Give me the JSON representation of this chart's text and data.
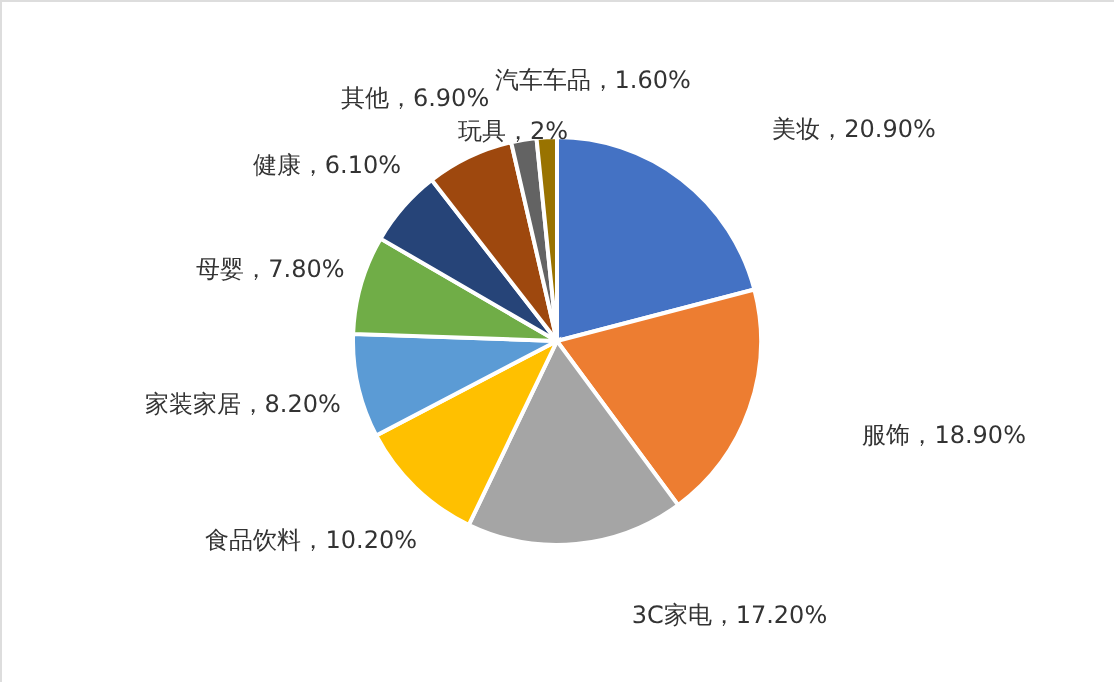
{
  "chart_data": {
    "type": "pie",
    "categories": [
      "美妆",
      "服饰",
      "3C家电",
      "食品饮料",
      "家装家居",
      "母婴",
      "健康",
      "其他",
      "玩具",
      "汽车车品"
    ],
    "values": [
      20.9,
      18.9,
      17.2,
      10.2,
      8.2,
      7.8,
      6.1,
      6.9,
      2,
      1.6
    ],
    "value_labels": [
      "20.90%",
      "18.90%",
      "17.20%",
      "10.20%",
      "8.20%",
      "7.80%",
      "6.10%",
      "6.90%",
      "2%",
      "1.60%"
    ],
    "colors": [
      "#4472c4",
      "#ed7d31",
      "#a5a5a5",
      "#ffc000",
      "#5b9bd5",
      "#70ad47",
      "#264478",
      "#9e480e",
      "#636363",
      "#997300"
    ],
    "legend": false
  }
}
